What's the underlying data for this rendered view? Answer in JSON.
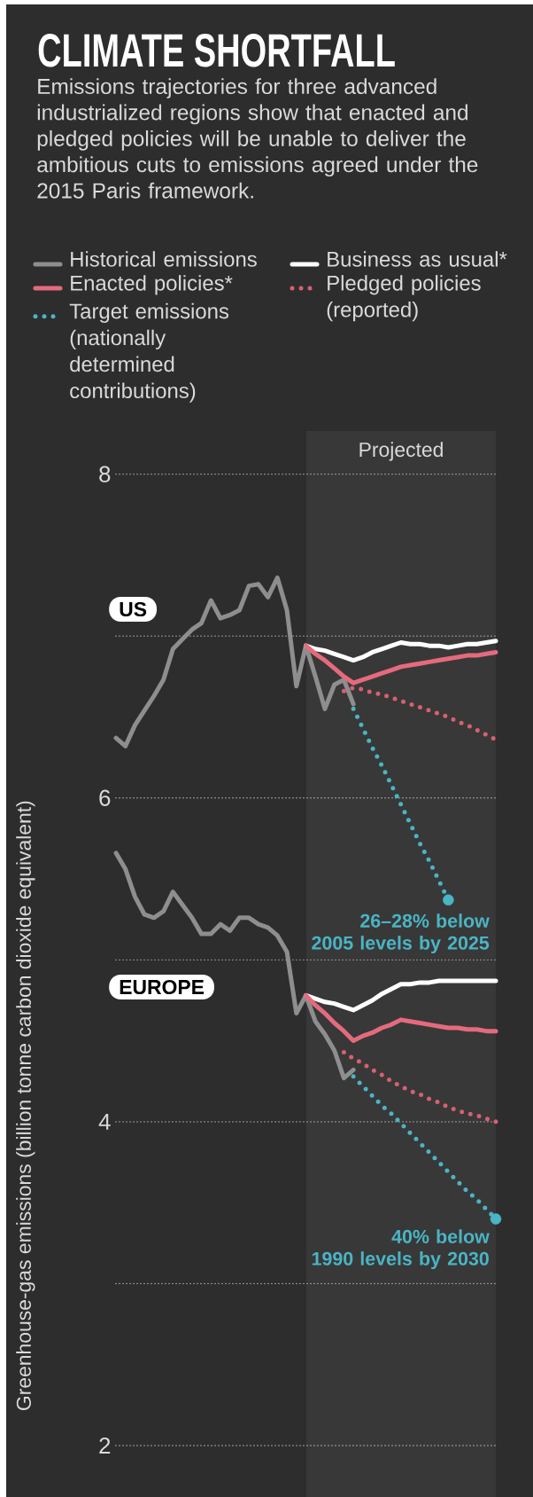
{
  "chart_data": {
    "type": "line",
    "title": "CLIMATE SHORTFALL",
    "subtitle": "Emissions trajectories for three advanced industrialized regions show that enacted and pledged policies will be unable to deliver the ambitious cuts to emissions agreed under the 2015 Paris framework.",
    "ylabel": "Greenhouse-gas emissions (billion tonne carbon dioxide equivalent)",
    "categories": [
      null,
      null,
      null,
      null,
      null,
      null,
      null,
      null,
      null,
      null,
      null,
      null,
      null,
      null,
      null,
      null,
      null,
      null,
      null,
      null,
      null,
      null,
      null,
      null,
      null,
      null,
      null,
      null,
      null,
      null,
      null,
      null,
      null,
      null,
      null,
      null,
      null,
      null,
      null,
      null,
      null
    ],
    "series": [
      {
        "name": "Historical emissions",
        "color": "#8e8e8e",
        "line_style": "solid",
        "values": [
          6.37,
          6.32,
          6.45,
          6.54,
          6.63,
          6.73,
          6.92,
          6.98,
          7.04,
          7.08,
          7.22,
          7.11,
          7.13,
          7.16,
          7.31,
          7.32,
          7.24,
          7.36,
          7.16,
          6.69,
          6.94,
          6.75,
          6.55,
          6.7,
          6.73,
          6.58,
          null,
          null,
          null,
          null,
          null,
          null,
          null,
          null,
          null,
          null,
          null,
          null,
          null,
          null,
          null
        ]
      },
      {
        "name": "Business as usual*",
        "color": "#ffffff",
        "line_style": "solid",
        "values": [
          null,
          null,
          null,
          null,
          null,
          null,
          null,
          null,
          null,
          null,
          null,
          null,
          null,
          null,
          null,
          null,
          null,
          null,
          null,
          null,
          6.94,
          6.92,
          6.91,
          6.89,
          6.87,
          6.85,
          6.87,
          6.9,
          6.92,
          6.94,
          6.96,
          6.95,
          6.95,
          6.94,
          6.94,
          6.93,
          6.94,
          6.95,
          6.95,
          6.96,
          6.97
        ]
      },
      {
        "name": "Enacted policies*",
        "color": "#e56a7d",
        "line_style": "solid",
        "values": [
          null,
          null,
          null,
          null,
          null,
          null,
          null,
          null,
          null,
          null,
          null,
          null,
          null,
          null,
          null,
          null,
          null,
          null,
          null,
          null,
          6.94,
          6.89,
          6.85,
          6.8,
          6.75,
          6.71,
          6.73,
          6.75,
          6.77,
          6.79,
          6.81,
          6.82,
          6.83,
          6.84,
          6.85,
          6.86,
          6.87,
          6.88,
          6.88,
          6.89,
          6.9
        ]
      },
      {
        "name": "Pledged policies (reported)",
        "color": "#d95f71",
        "line_style": "dotted",
        "values": [
          null,
          null,
          null,
          null,
          null,
          null,
          null,
          null,
          null,
          null,
          null,
          null,
          null,
          null,
          null,
          null,
          null,
          null,
          null,
          null,
          null,
          null,
          null,
          null,
          6.66,
          6.68,
          6.67,
          6.65,
          6.64,
          6.62,
          6.6,
          6.58,
          6.56,
          6.54,
          6.52,
          6.5,
          6.47,
          6.45,
          6.42,
          6.39,
          6.36
        ]
      },
      {
        "name": "Target emissions (nationally determined contributions)",
        "color": "#4ab5c4",
        "line_style": "dotted",
        "values": [
          null,
          null,
          null,
          null,
          null,
          null,
          null,
          null,
          null,
          null,
          null,
          null,
          null,
          null,
          null,
          null,
          null,
          null,
          null,
          null,
          null,
          null,
          null,
          null,
          null,
          6.55,
          6.43,
          6.31,
          6.2,
          6.08,
          5.96,
          5.84,
          5.72,
          5.61,
          5.49,
          5.37,
          null,
          null,
          null,
          null,
          null
        ]
      },
      {
        "color": "#8e8e8e",
        "line_style": "solid",
        "values": [
          5.66,
          5.56,
          5.39,
          5.28,
          5.26,
          5.3,
          5.42,
          5.34,
          5.26,
          5.16,
          5.16,
          5.22,
          5.18,
          5.26,
          5.26,
          5.22,
          5.2,
          5.15,
          5.05,
          4.67,
          4.78,
          4.62,
          4.54,
          4.44,
          4.27,
          4.32,
          null,
          null,
          null,
          null,
          null,
          null,
          null,
          null,
          null,
          null,
          null,
          null,
          null,
          null,
          null
        ]
      },
      {
        "color": "#ffffff",
        "line_style": "solid",
        "values": [
          null,
          null,
          null,
          null,
          null,
          null,
          null,
          null,
          null,
          null,
          null,
          null,
          null,
          null,
          null,
          null,
          null,
          null,
          null,
          null,
          4.78,
          4.76,
          4.74,
          4.73,
          4.71,
          4.69,
          4.72,
          4.75,
          4.79,
          4.82,
          4.85,
          4.85,
          4.86,
          4.86,
          4.87,
          4.87,
          4.87,
          4.87,
          4.87,
          4.87,
          4.87
        ]
      },
      {
        "color": "#e56a7d",
        "line_style": "solid",
        "values": [
          null,
          null,
          null,
          null,
          null,
          null,
          null,
          null,
          null,
          null,
          null,
          null,
          null,
          null,
          null,
          null,
          null,
          null,
          null,
          null,
          4.78,
          4.72,
          4.67,
          4.61,
          4.56,
          4.5,
          4.53,
          4.55,
          4.58,
          4.6,
          4.63,
          4.62,
          4.61,
          4.6,
          4.59,
          4.58,
          4.58,
          4.57,
          4.57,
          4.56,
          4.56
        ]
      },
      {
        "color": "#d95f71",
        "line_style": "dotted",
        "values": [
          null,
          null,
          null,
          null,
          null,
          null,
          null,
          null,
          null,
          null,
          null,
          null,
          null,
          null,
          null,
          null,
          null,
          null,
          null,
          null,
          null,
          null,
          null,
          null,
          4.43,
          4.39,
          4.36,
          4.32,
          4.29,
          4.25,
          4.22,
          4.19,
          4.17,
          4.14,
          4.12,
          4.09,
          4.07,
          4.05,
          4.04,
          4.02,
          4.0
        ]
      },
      {
        "color": "#4ab5c4",
        "line_style": "dotted",
        "values": [
          null,
          null,
          null,
          null,
          null,
          null,
          null,
          null,
          null,
          null,
          null,
          null,
          null,
          null,
          null,
          null,
          null,
          null,
          null,
          null,
          null,
          null,
          null,
          null,
          null,
          4.28,
          4.22,
          4.16,
          4.1,
          4.05,
          3.99,
          3.93,
          3.87,
          3.81,
          3.75,
          3.69,
          3.63,
          3.57,
          3.52,
          3.46,
          3.4
        ]
      },
      {
        "type": "scatter",
        "color": "#4ab5c4",
        "marker": "circle",
        "values": [
          null,
          null,
          null,
          null,
          null,
          null,
          null,
          null,
          null,
          null,
          null,
          null,
          null,
          null,
          null,
          null,
          null,
          null,
          null,
          null,
          null,
          null,
          null,
          null,
          null,
          null,
          null,
          null,
          null,
          null,
          null,
          null,
          null,
          null,
          null,
          5.37,
          null,
          null,
          null,
          null,
          3.4
        ]
      }
    ],
    "ylim": [
      2,
      8
    ],
    "yticks": [
      2,
      {
        "value": 3,
        "label": null
      },
      4,
      {
        "value": 5,
        "label": null
      },
      6,
      {
        "value": 7,
        "label": null
      },
      8
    ],
    "grid": "y",
    "legend": "top",
    "tick_labels": "y",
    "annotations": [
      "Projected",
      "US",
      "26–28% below\n2005 levels by 2025",
      "EUROPE",
      "40% below\n1990 levels by 2030"
    ]
  }
}
